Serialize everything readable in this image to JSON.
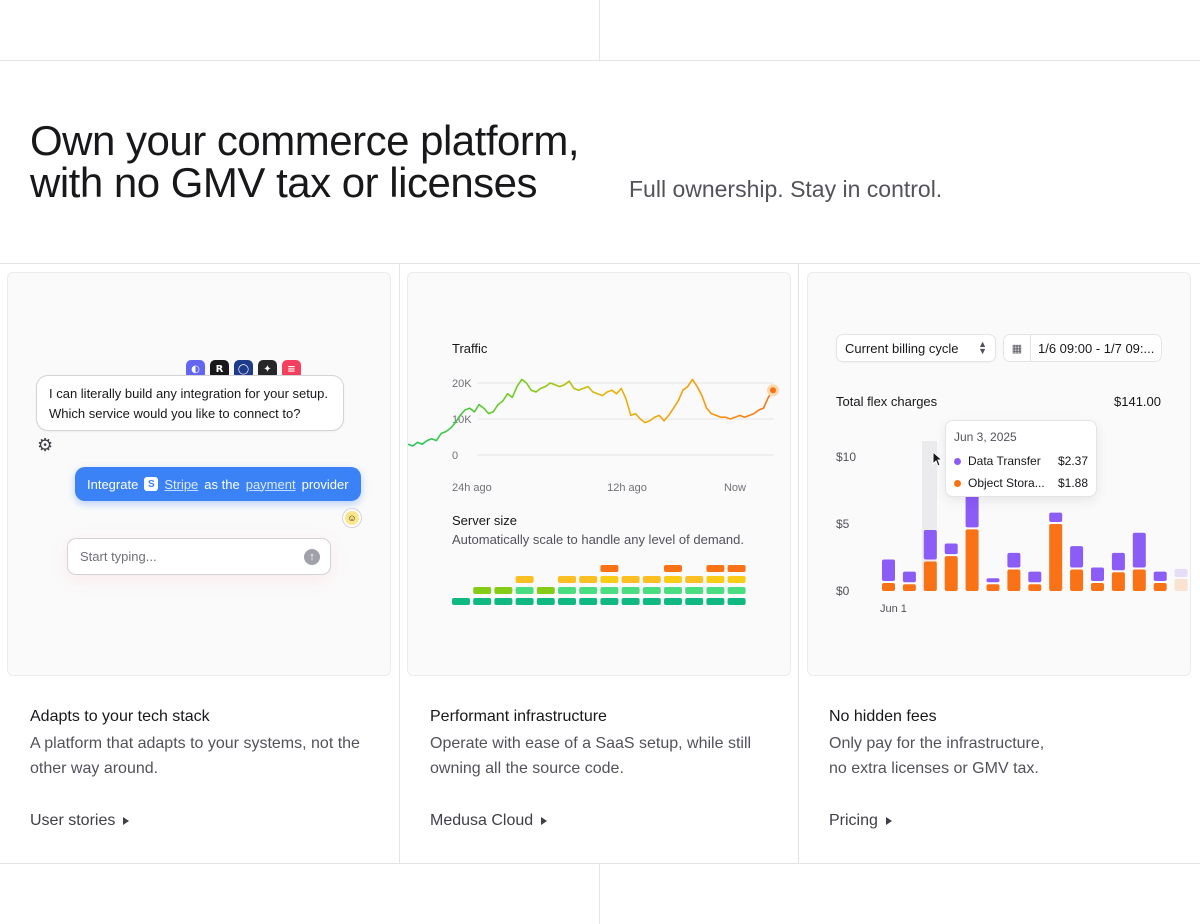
{
  "hero": {
    "title_line1": "Own your commerce platform,",
    "title_line2": "with no GMV tax or licenses",
    "subtitle": "Full ownership. Stay in control."
  },
  "features": [
    {
      "title": "Adapts to your tech stack",
      "desc_line1": "A platform that adapts to your systems, not the",
      "desc_line2": "other way around.",
      "link": "User stories"
    },
    {
      "title": "Performant infrastructure",
      "desc_line1": "Operate with ease of a SaaS setup, while still",
      "desc_line2": "owning all the source code.",
      "link": "Medusa Cloud"
    },
    {
      "title": "No hidden fees",
      "desc_line1": "Only pay for the infrastructure,",
      "desc_line2": "no extra licenses or GMV tax.",
      "link": "Pricing"
    }
  ],
  "chat": {
    "logos": [
      {
        "name": "linear-logo-icon",
        "color": "#6366f1",
        "glyph": "◐"
      },
      {
        "name": "resend-logo-icon",
        "color": "#18181b",
        "glyph": "R"
      },
      {
        "name": "github-logo-icon",
        "color": "#1e3a8a",
        "glyph": "◯"
      },
      {
        "name": "sanity-logo-icon",
        "color": "#27272a",
        "glyph": "✦"
      },
      {
        "name": "contentful-logo-icon",
        "color": "#f43f5e",
        "glyph": "≡"
      }
    ],
    "bot_message_line1": "I can literally build any integration for your setup.",
    "bot_message_line2": "Which service would you like to connect to?",
    "user_message": {
      "prefix": "Integrate",
      "badge": "S",
      "service": "Stripe",
      "middle": "as the",
      "role": "payment",
      "suffix": "provider"
    },
    "input_placeholder": "Start typing..."
  },
  "infra": {
    "traffic_title": "Traffic",
    "y_ticks": [
      "20K",
      "10K",
      "0"
    ],
    "x_ticks": [
      "24h ago",
      "12h ago",
      "Now"
    ],
    "traffic_points": [
      3,
      2.5,
      3.5,
      3,
      4,
      4.5,
      4,
      6,
      6.5,
      7.5,
      9,
      11,
      12.5,
      13,
      12,
      14,
      13,
      11.5,
      12,
      14,
      15,
      17,
      16,
      19,
      21,
      20,
      18,
      17.5,
      18.5,
      19,
      20,
      19.5,
      19,
      19.5,
      20.5,
      18.5,
      18,
      18.5,
      19,
      17.5,
      17,
      16.5,
      17.5,
      18,
      17,
      18.5,
      15.5,
      11,
      11.5,
      10,
      9,
      9.5,
      10.5,
      11,
      9.5,
      11,
      13,
      15,
      18,
      19,
      21,
      19,
      16.5,
      13,
      11.5,
      11,
      10.5,
      10.5,
      10,
      10.5,
      11,
      10.5,
      11,
      11.5,
      12.5,
      13,
      16,
      18
    ],
    "server_title": "Server size",
    "server_desc": "Automatically scale to handle any level of demand.",
    "server_levels": [
      1,
      2,
      2,
      3,
      2,
      3,
      3,
      4,
      3,
      3,
      4,
      3,
      4,
      4
    ],
    "colors": {
      "green": "#22c55e",
      "teal": "#10b981",
      "lime": "#84cc16",
      "yellow": "#facc15",
      "amber": "#f59e0b",
      "orange": "#f97316"
    }
  },
  "billing": {
    "cycle_select": "Current billing cycle",
    "date_range": "1/6 09:00 - 1/7 09:...",
    "total_label": "Total flex charges",
    "total_value": "$141.00",
    "y_ticks": [
      "$10",
      "$5",
      "$0"
    ],
    "x_label": "Jun 1",
    "tooltip": {
      "date": "Jun 3, 2025",
      "rows": [
        {
          "label": "Data Transfer",
          "value": "$2.37",
          "color": "#8b5cf6"
        },
        {
          "label": "Object Stora...",
          "value": "$1.88",
          "color": "#f97316"
        }
      ]
    },
    "bars": [
      {
        "orange": 0.6,
        "purple": 1.6
      },
      {
        "orange": 0.5,
        "purple": 0.8
      },
      {
        "orange": 2.2,
        "purple": 2.2
      },
      {
        "orange": 2.6,
        "purple": 0.8
      },
      {
        "orange": 4.6,
        "purple": 2.5
      },
      {
        "orange": 0.5,
        "purple": 0.3
      },
      {
        "orange": 1.6,
        "purple": 1.1
      },
      {
        "orange": 0.5,
        "purple": 0.8
      },
      {
        "orange": 5.0,
        "purple": 0.7
      },
      {
        "orange": 1.6,
        "purple": 1.6
      },
      {
        "orange": 0.6,
        "purple": 1.0
      },
      {
        "orange": 1.4,
        "purple": 1.3
      },
      {
        "orange": 1.6,
        "purple": 2.6
      },
      {
        "orange": 0.6,
        "purple": 0.7
      },
      {
        "orange": 0.9,
        "purple": 0.6
      },
      {
        "orange": 2.0,
        "purple": 0.6
      }
    ],
    "colors": {
      "purple": "#8b5cf6",
      "orange": "#f97316"
    }
  }
}
